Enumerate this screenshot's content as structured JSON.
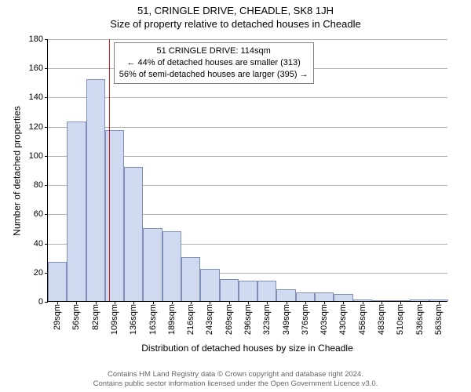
{
  "header": {
    "title": "51, CRINGLE DRIVE, CHEADLE, SK8 1JH",
    "subtitle": "Size of property relative to detached houses in Cheadle"
  },
  "axes": {
    "ylabel": "Number of detached properties",
    "xlabel": "Distribution of detached houses by size in Cheadle"
  },
  "chart": {
    "type": "bar",
    "ylim": [
      0,
      180
    ],
    "ytick_step": 20,
    "yticks": [
      0,
      20,
      40,
      60,
      80,
      100,
      120,
      140,
      160,
      180
    ],
    "xticks": [
      "29sqm",
      "56sqm",
      "82sqm",
      "109sqm",
      "136sqm",
      "163sqm",
      "189sqm",
      "216sqm",
      "243sqm",
      "269sqm",
      "296sqm",
      "323sqm",
      "349sqm",
      "376sqm",
      "403sqm",
      "430sqm",
      "456sqm",
      "483sqm",
      "510sqm",
      "536sqm",
      "563sqm"
    ],
    "values": [
      27,
      123,
      152,
      117,
      92,
      50,
      48,
      30,
      22,
      15,
      14,
      14,
      8,
      6,
      6,
      5,
      1,
      0,
      0,
      1,
      1
    ],
    "bar_fill": "#cfd9ef",
    "bar_border": "#7f8fb8",
    "grid_color": "#b0b0b0",
    "background_color": "#ffffff",
    "refline": {
      "index": 3.2,
      "color": "#cc2222"
    },
    "annotation": {
      "lines": [
        "51 CRINGLE DRIVE: 114sqm",
        "← 44% of detached houses are smaller (313)",
        "56% of semi-detached houses are larger (395) →"
      ],
      "box_border": "#808080",
      "box_bg": "#ffffff",
      "text_color": "#000000"
    }
  },
  "footnote": {
    "line1": "Contains HM Land Registry data © Crown copyright and database right 2024.",
    "line2": "Contains public sector information licensed under the Open Government Licence v3.0.",
    "color": "#666666"
  }
}
